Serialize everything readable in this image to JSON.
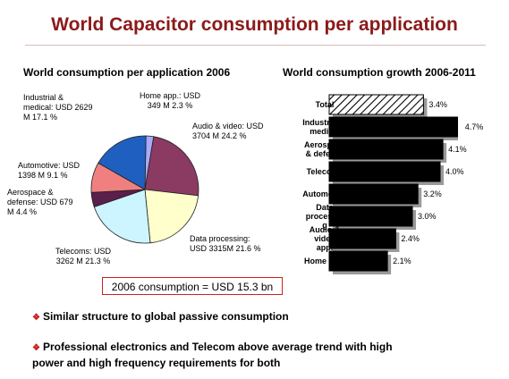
{
  "title": "World Capacitor consumption per application",
  "chart_data": [
    {
      "type": "pie",
      "title": "World consumption per application 2006",
      "slices": [
        {
          "label": "Home app.: USD 349 M 2.3 %",
          "value": 2.3,
          "color": "#a9a9ff"
        },
        {
          "label": "Audio & video: USD 3704 M 24.2 %",
          "value": 24.2,
          "color": "#8b3a62"
        },
        {
          "label": "Data processing: USD 3315M 21.6 %",
          "value": 21.6,
          "color": "#ffffcc"
        },
        {
          "label": "Telecoms: USD 3262 M 21.3 %",
          "value": 21.3,
          "color": "#ccf5ff"
        },
        {
          "label": "Aerospace & defense: USD 679 M 4.4 %",
          "value": 4.4,
          "color": "#5a1f4a"
        },
        {
          "label": "Automotive: USD 1398 M 9.1 %",
          "value": 9.1,
          "color": "#f08080"
        },
        {
          "label": "Industrial & medical: USD 2629 M 17.1 %",
          "value": 17.1,
          "color": "#1f5fbf"
        }
      ]
    },
    {
      "type": "bar",
      "orientation": "horizontal",
      "title": "World consumption growth 2006-2011",
      "categories": [
        "Total",
        "Industrial & medical",
        "Aerospace & defense",
        "Telecoms",
        "Automotive",
        "Data processing",
        "Audio & video app.",
        "Home app."
      ],
      "values": [
        3.4,
        4.7,
        4.1,
        4.0,
        3.2,
        3.0,
        2.4,
        2.1
      ],
      "value_labels": [
        "3.4%",
        "4.7%",
        "4.1%",
        "4.0%",
        "3.2%",
        "3.0%",
        "2.4%",
        "2.1%"
      ],
      "xlim": [
        0,
        5
      ],
      "colors": {
        "bar": "#000000",
        "total_fill": "hatched"
      }
    }
  ],
  "labels": {
    "home": [
      "Home app.: USD",
      "349 M 2.3 %"
    ],
    "audio": [
      "Audio & video: USD",
      "3704 M 24.2 %"
    ],
    "data": [
      "Data processing:",
      "USD 3315M 21.6 %"
    ],
    "telecom": [
      "Telecoms: USD",
      "3262 M 21.3 %"
    ],
    "aero": [
      "Aerospace &",
      "defense: USD 679",
      "M 4.4 %"
    ],
    "auto": [
      "Automotive: USD",
      "1398 M 9.1 %"
    ],
    "industrial": [
      "Industrial &",
      "medical: USD 2629",
      "M 17.1 %"
    ]
  },
  "bar_categories_display": [
    [
      "Total"
    ],
    [
      "Industrial &",
      "medical"
    ],
    [
      "Aerospace",
      "& defense"
    ],
    [
      "Telecoms"
    ],
    [
      "Automotive"
    ],
    [
      "Data",
      "processin",
      "g"
    ],
    [
      "Audio &",
      "video",
      "app."
    ],
    [
      "Home app."
    ]
  ],
  "consumption_box": "2006 consumption = USD 15.3 bn",
  "bullets": [
    "Similar structure to global passive consumption",
    "Professional electronics and Telecom above average trend with high",
    "power and high frequency requirements for both"
  ],
  "colors": {
    "title": "#8b1a1a",
    "box_border": "#cc2222",
    "bullet": "#cc2222"
  }
}
